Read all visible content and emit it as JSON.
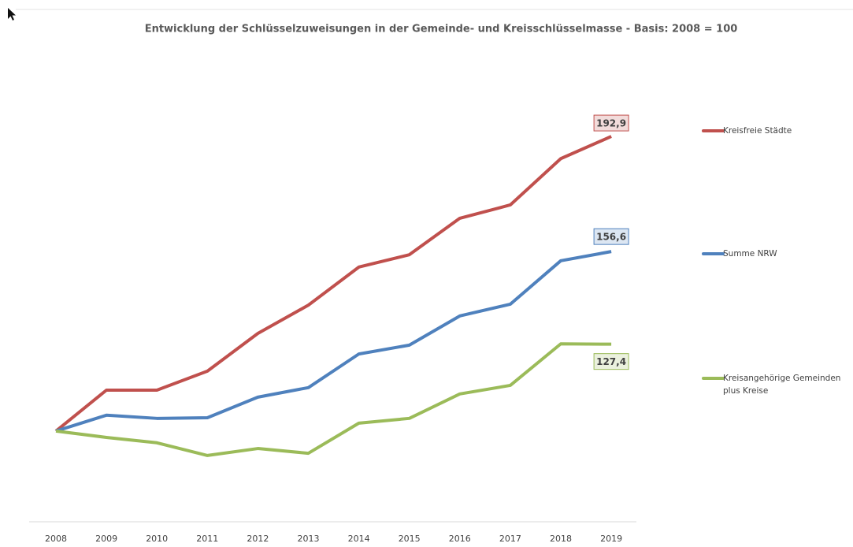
{
  "chart_data": {
    "type": "line",
    "title": "Entwicklung der Schlüsselzuweisungen in der Gemeinde- und Kreisschlüsselmasse - Basis: 2008 = 100",
    "categories": [
      "2008",
      "2009",
      "2010",
      "2011",
      "2012",
      "2013",
      "2014",
      "2015",
      "2016",
      "2017",
      "2018",
      "2019"
    ],
    "ylim": [
      71.4,
      221
    ],
    "series": [
      {
        "name": "Kreisfreie Städte",
        "color": "#c0504d",
        "label_bg": "#f2dcdb",
        "values": [
          100,
          112.9,
          112.9,
          118.9,
          130.8,
          139.7,
          151.7,
          155.6,
          167.1,
          171.3,
          185.9,
          192.9
        ],
        "value_labels": [
          null,
          null,
          null,
          null,
          null,
          null,
          null,
          null,
          null,
          null,
          null,
          "192,9"
        ]
      },
      {
        "name": "Summe NRW",
        "color": "#4f81bd",
        "label_bg": "#dce6f2",
        "values": [
          100,
          105.0,
          104.0,
          104.2,
          110.7,
          113.7,
          124.3,
          127.1,
          136.3,
          140.0,
          153.7,
          156.6
        ],
        "value_labels": [
          null,
          null,
          null,
          null,
          null,
          null,
          null,
          null,
          null,
          null,
          null,
          "156,6"
        ]
      },
      {
        "name": "Kreisangehörige Gemeinden plus Kreise",
        "color": "#9bbb59",
        "label_bg": "#ebf1de",
        "values": [
          100,
          98.0,
          96.3,
          92.3,
          94.5,
          93.0,
          102.5,
          104.0,
          111.7,
          114.4,
          127.5,
          127.4
        ],
        "value_labels": [
          null,
          null,
          null,
          null,
          null,
          null,
          null,
          null,
          null,
          null,
          null,
          "127,4"
        ]
      }
    ]
  }
}
